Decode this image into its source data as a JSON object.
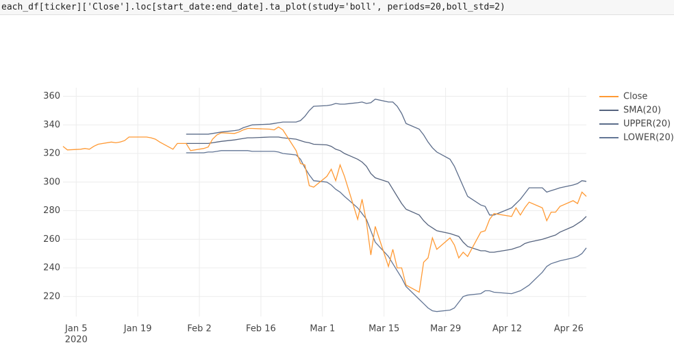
{
  "code": "each_df[ticker]['Close'].loc[start_date:end_date].ta_plot(study='boll', periods=20,boll_std=2)",
  "chart_data": {
    "type": "line",
    "x": [
      "2020-01-02",
      "2020-01-03",
      "2020-01-06",
      "2020-01-07",
      "2020-01-08",
      "2020-01-09",
      "2020-01-10",
      "2020-01-13",
      "2020-01-14",
      "2020-01-15",
      "2020-01-16",
      "2020-01-17",
      "2020-01-21",
      "2020-01-22",
      "2020-01-23",
      "2020-01-24",
      "2020-01-27",
      "2020-01-28",
      "2020-01-29",
      "2020-01-30",
      "2020-01-31",
      "2020-02-03",
      "2020-02-04",
      "2020-02-05",
      "2020-02-06",
      "2020-02-07",
      "2020-02-10",
      "2020-02-11",
      "2020-02-12",
      "2020-02-13",
      "2020-02-14",
      "2020-02-18",
      "2020-02-19",
      "2020-02-20",
      "2020-02-21",
      "2020-02-24",
      "2020-02-25",
      "2020-02-26",
      "2020-02-27",
      "2020-02-28",
      "2020-03-02",
      "2020-03-03",
      "2020-03-04",
      "2020-03-05",
      "2020-03-06",
      "2020-03-09",
      "2020-03-10",
      "2020-03-11",
      "2020-03-12",
      "2020-03-13",
      "2020-03-16",
      "2020-03-17",
      "2020-03-18",
      "2020-03-19",
      "2020-03-20",
      "2020-03-23",
      "2020-03-24",
      "2020-03-25",
      "2020-03-26",
      "2020-03-27",
      "2020-03-30",
      "2020-03-31",
      "2020-04-01",
      "2020-04-02",
      "2020-04-03",
      "2020-04-06",
      "2020-04-07",
      "2020-04-08",
      "2020-04-09",
      "2020-04-13",
      "2020-04-14",
      "2020-04-15",
      "2020-04-16",
      "2020-04-17",
      "2020-04-20",
      "2020-04-21",
      "2020-04-22",
      "2020-04-23",
      "2020-04-24",
      "2020-04-27",
      "2020-04-28",
      "2020-04-29",
      "2020-04-30"
    ],
    "series": [
      {
        "name": "Close",
        "color": "#ff9933",
        "values": [
          325,
          322.5,
          323,
          323.5,
          323,
          325,
          326.5,
          328,
          327.5,
          328,
          329,
          331.5,
          331.5,
          331,
          330,
          328,
          323,
          327,
          327,
          327,
          322,
          323.5,
          324.5,
          330,
          333,
          334.5,
          334,
          335,
          336.5,
          337.5,
          337.5,
          337,
          336.5,
          338.5,
          336.5,
          322,
          313,
          312,
          297.5,
          296.5,
          304,
          309,
          301,
          312,
          304,
          274,
          288,
          272,
          249,
          269,
          241,
          253,
          240,
          240,
          228,
          223,
          244,
          247,
          261,
          253,
          261,
          256,
          247,
          251,
          248,
          265,
          266,
          274,
          278,
          276,
          282,
          277,
          282,
          286,
          282,
          273,
          279,
          279,
          283,
          287,
          285,
          293,
          290
        ]
      },
      {
        "name": "SMA(20)",
        "color": "#55637e",
        "values": [
          null,
          null,
          null,
          null,
          null,
          null,
          null,
          null,
          null,
          null,
          null,
          null,
          null,
          null,
          null,
          null,
          null,
          null,
          null,
          327,
          327,
          327,
          327,
          327.5,
          328,
          328.5,
          329.5,
          330,
          330.5,
          331,
          331,
          331.5,
          331.5,
          331.5,
          331,
          330,
          329,
          328,
          327.5,
          326.5,
          326,
          325,
          323,
          322,
          320,
          316,
          314,
          311,
          306,
          303,
          300,
          295,
          290,
          285,
          281,
          277,
          273,
          270,
          268,
          266,
          264,
          263,
          262,
          258,
          255,
          252,
          252,
          251,
          251,
          253,
          254,
          255,
          257,
          258,
          260,
          261,
          262,
          263,
          265,
          269,
          271,
          273,
          276
        ]
      },
      {
        "name": "UPPER(20)",
        "color": "#5b6c8a",
        "values": [
          null,
          null,
          null,
          null,
          null,
          null,
          null,
          null,
          null,
          null,
          null,
          null,
          null,
          null,
          null,
          null,
          null,
          null,
          null,
          333.5,
          333.5,
          333.5,
          333.5,
          334,
          334.5,
          335,
          336,
          336.5,
          338,
          339,
          340,
          340.5,
          341,
          341.5,
          342,
          342,
          343,
          346,
          350,
          353,
          353.5,
          354,
          355,
          354.5,
          354.5,
          355.5,
          356,
          355,
          355.5,
          358,
          356,
          356,
          353,
          348,
          341,
          337,
          333,
          328,
          324,
          321,
          316,
          311,
          304,
          297,
          290,
          284,
          283,
          277,
          277,
          282,
          285,
          288,
          292,
          296,
          296,
          293,
          294,
          295,
          296,
          298,
          299,
          301,
          300.5
        ]
      },
      {
        "name": "LOWER(20)",
        "color": "#627595",
        "values": [
          null,
          null,
          null,
          null,
          null,
          null,
          null,
          null,
          null,
          null,
          null,
          null,
          null,
          null,
          null,
          null,
          null,
          null,
          null,
          320.5,
          320.5,
          320.5,
          321,
          321,
          321.5,
          322,
          322,
          322,
          322,
          322,
          321.5,
          321.5,
          321.5,
          321,
          320,
          319,
          316,
          310,
          305,
          301,
          300,
          298,
          295,
          293,
          290,
          282,
          278,
          274,
          266,
          258,
          248,
          243,
          238,
          233,
          227,
          218,
          215,
          212,
          210,
          209.5,
          210.5,
          212,
          216,
          220,
          221,
          222,
          224,
          224,
          223,
          222,
          223,
          224,
          226,
          228,
          237,
          241,
          243,
          244,
          245,
          247,
          248,
          250,
          254
        ]
      }
    ],
    "xlim": [
      "2020-01-02",
      "2020-04-30"
    ],
    "xticks": [
      {
        "value": "2020-01-05",
        "label": "Jan 5"
      },
      {
        "value": "2020-01-19",
        "label": "Jan 19"
      },
      {
        "value": "2020-02-02",
        "label": "Feb 2"
      },
      {
        "value": "2020-02-16",
        "label": "Feb 16"
      },
      {
        "value": "2020-03-01",
        "label": "Mar 1"
      },
      {
        "value": "2020-03-15",
        "label": "Mar 15"
      },
      {
        "value": "2020-03-29",
        "label": "Mar 29"
      },
      {
        "value": "2020-04-12",
        "label": "Apr 12"
      },
      {
        "value": "2020-04-26",
        "label": "Apr 26"
      }
    ],
    "xtick_year": "2020",
    "ylim": [
      206,
      366
    ],
    "yticks": [
      220,
      240,
      260,
      280,
      300,
      320,
      340,
      360
    ],
    "grid": true,
    "legend": "right"
  }
}
